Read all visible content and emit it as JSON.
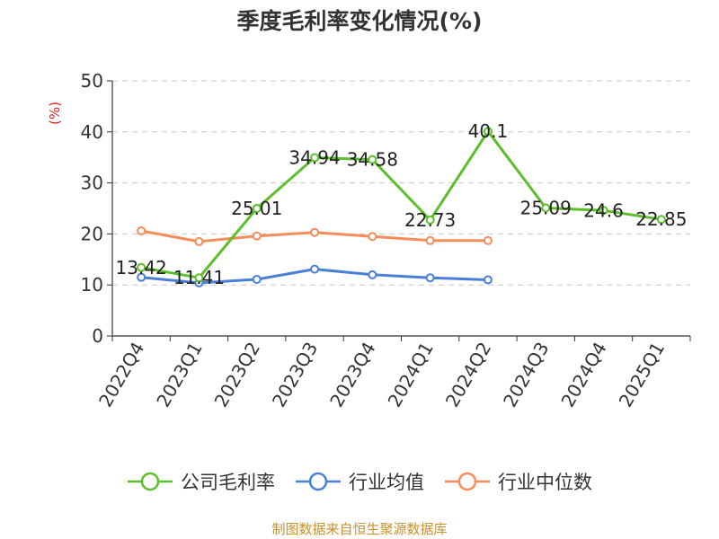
{
  "chart_data": {
    "type": "line",
    "title": "季度毛利率变化情况(%)",
    "ylabel": "(%)",
    "xlabel": "",
    "ylim": [
      0,
      50
    ],
    "yticks": [
      0,
      10,
      20,
      30,
      40,
      50
    ],
    "grid": "horizontal dashed",
    "legend_position": "bottom",
    "categories": [
      "2022Q4",
      "2023Q1",
      "2023Q2",
      "2023Q3",
      "2023Q4",
      "2024Q1",
      "2024Q2",
      "2024Q3",
      "2024Q4",
      "2025Q1"
    ],
    "series": [
      {
        "name": "公司毛利率",
        "color": "#5cbf2a",
        "values": [
          13.42,
          11.41,
          25.01,
          34.94,
          34.58,
          22.73,
          40.1,
          25.09,
          24.6,
          22.85
        ],
        "data_labels": [
          "13.42",
          "11.41",
          "25.01",
          "34.94",
          "34.58",
          "22.73",
          "40.1",
          "25.09",
          "24.6",
          "22.85"
        ]
      },
      {
        "name": "行业均值",
        "color": "#4a7fd8",
        "values": [
          11.5,
          10.4,
          11.1,
          13.1,
          12.0,
          11.4,
          11.0,
          null,
          null,
          null
        ]
      },
      {
        "name": "行业中位数",
        "color": "#f58d5a",
        "values": [
          20.6,
          18.5,
          19.6,
          20.3,
          19.5,
          18.7,
          18.7,
          null,
          null,
          null
        ]
      }
    ]
  },
  "source_note": "制图数据来自恒生聚源数据库"
}
